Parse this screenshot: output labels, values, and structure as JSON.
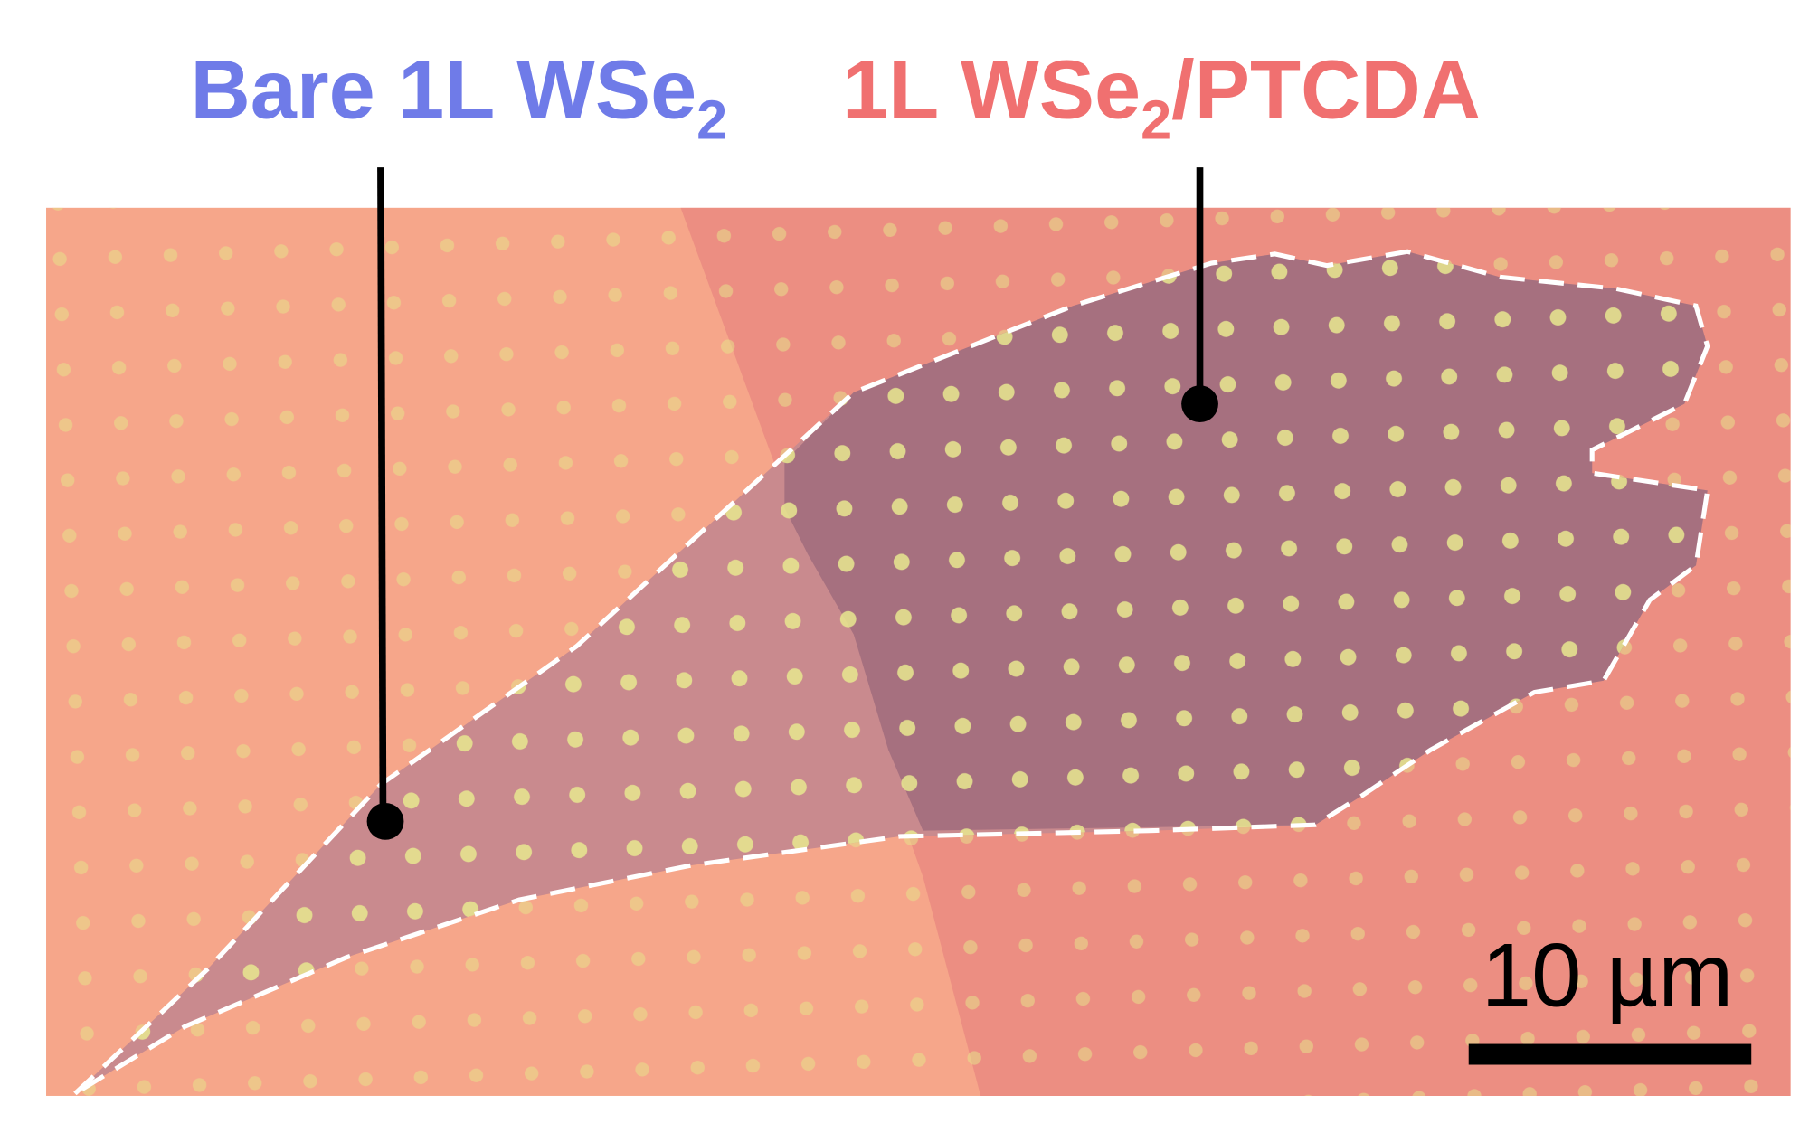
{
  "labels": [
    {
      "text": "Bare 1L WSe",
      "subscript": "2"
    },
    {
      "text": "1L WSe",
      "subscript": "2",
      "suffix": "/PTCDA"
    }
  ],
  "scale_bar": {
    "label": "10 µm"
  }
}
